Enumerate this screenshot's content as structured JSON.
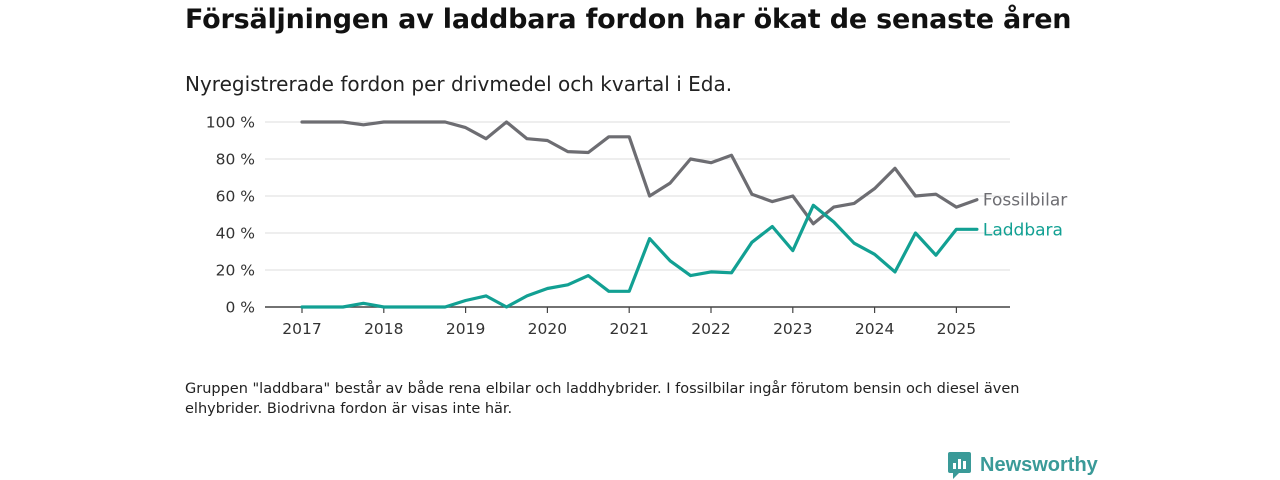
{
  "title": "Försäljningen av laddbara fordon har ökat de senaste åren",
  "subtitle": "Nyregistrerade fordon per drivmedel och kvartal i Eda.",
  "footnote": "Gruppen \"laddbara\" består av både rena elbilar och laddhybrider. I fossilbilar ingår förutom bensin och diesel även elhybrider. Biodrivna fordon är visas inte här.",
  "brand": {
    "name": "Newsworthy",
    "icon": "newsworthy-logo-icon",
    "color": "#3a9a98"
  },
  "chart_data": {
    "type": "line",
    "x_unit": "quarter",
    "x_start": "2017 Q1",
    "x_ticks": [
      "2017",
      "2018",
      "2019",
      "2020",
      "2021",
      "2022",
      "2023",
      "2024",
      "2025"
    ],
    "y_ticks": [
      "0 %",
      "20 %",
      "40 %",
      "60 %",
      "80 %",
      "100 %"
    ],
    "ylim": [
      0,
      100
    ],
    "grid": "horizontal",
    "series": [
      {
        "name": "Fossilbilar",
        "color": "#6d6d72",
        "values": [
          100,
          100,
          100,
          98.5,
          100,
          100,
          100,
          100,
          97,
          91,
          100,
          91,
          90,
          84,
          83.5,
          92,
          92,
          60,
          67,
          80,
          78,
          82,
          61,
          57,
          60,
          45,
          54,
          56,
          64,
          75,
          60,
          61,
          54,
          58
        ]
      },
      {
        "name": "Laddbara",
        "color": "#12a093",
        "values": [
          0,
          0,
          0,
          2,
          0,
          0,
          0,
          0,
          3.5,
          6,
          0,
          6,
          10,
          12,
          17,
          8.5,
          8.5,
          37,
          25,
          17,
          19,
          18.5,
          35,
          43.5,
          30.5,
          55,
          46,
          34.5,
          28.5,
          19,
          40,
          28,
          42,
          42
        ]
      }
    ]
  }
}
